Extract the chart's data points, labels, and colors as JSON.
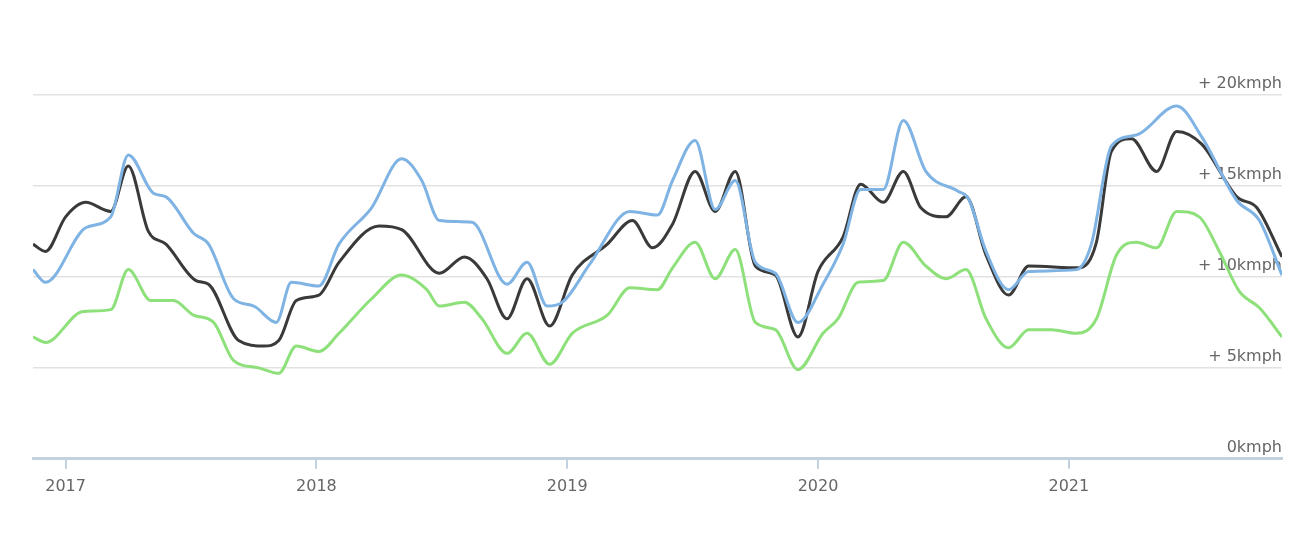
{
  "chart_data": {
    "type": "line",
    "xlim": [
      2016.87,
      2021.85
    ],
    "xticks": [
      2017,
      2018,
      2019,
      2020,
      2021
    ],
    "ylim": [
      0,
      20
    ],
    "yticks": [
      {
        "value": 0,
        "label": "0kmph"
      },
      {
        "value": 5,
        "label": "+ 5kmph"
      },
      {
        "value": 10,
        "label": "+ 10kmph"
      },
      {
        "value": 15,
        "label": "+ 15kmph"
      },
      {
        "value": 20,
        "label": "+ 20kmph"
      }
    ],
    "grid": "y",
    "legend": false,
    "marker": "none",
    "line_style": "solid",
    "series": [
      {
        "color": "#7eb3e4",
        "x": [
          2016.87,
          2016.92,
          2017.08,
          2017.18,
          2017.25,
          2017.35,
          2017.4,
          2017.51,
          2017.57,
          2017.67,
          2017.75,
          2017.84,
          2017.9,
          2018.01,
          2018.09,
          2018.22,
          2018.34,
          2018.42,
          2018.49,
          2018.62,
          2018.76,
          2018.84,
          2018.92,
          2018.98,
          2019.09,
          2019.25,
          2019.36,
          2019.42,
          2019.51,
          2019.59,
          2019.67,
          2019.75,
          2019.83,
          2019.92,
          2020.02,
          2020.1,
          2020.17,
          2020.26,
          2020.34,
          2020.43,
          2020.56,
          2020.6,
          2020.67,
          2020.76,
          2020.84,
          2021.03,
          2021.09,
          2021.17,
          2021.27,
          2021.43,
          2021.53,
          2021.67,
          2021.76,
          2021.85
        ],
        "values": [
          10.4,
          9.7,
          12.7,
          13.3,
          16.7,
          14.6,
          14.4,
          12.4,
          11.8,
          8.8,
          8.4,
          7.5,
          9.7,
          9.5,
          11.8,
          13.8,
          16.5,
          15.3,
          13.1,
          13.0,
          9.6,
          10.8,
          8.4,
          8.6,
          10.7,
          13.6,
          13.4,
          15.3,
          17.5,
          13.7,
          15.3,
          10.8,
          10.2,
          7.5,
          9.6,
          11.8,
          14.8,
          14.8,
          18.6,
          15.8,
          14.7,
          14.3,
          11.4,
          9.3,
          10.3,
          10.4,
          11.8,
          17.2,
          17.8,
          19.4,
          17.7,
          14.2,
          13.1,
          10.1
        ]
      },
      {
        "color": "#8ee07a",
        "x": [
          2016.87,
          2016.92,
          2017.07,
          2017.18,
          2017.25,
          2017.34,
          2017.43,
          2017.51,
          2017.59,
          2017.67,
          2017.77,
          2017.85,
          2017.92,
          2018.01,
          2018.09,
          2018.22,
          2018.34,
          2018.44,
          2018.49,
          2018.59,
          2018.66,
          2018.76,
          2018.84,
          2018.93,
          2019.02,
          2019.16,
          2019.25,
          2019.36,
          2019.42,
          2019.51,
          2019.59,
          2019.67,
          2019.75,
          2019.83,
          2019.92,
          2020.02,
          2020.08,
          2020.16,
          2020.26,
          2020.34,
          2020.43,
          2020.51,
          2020.59,
          2020.67,
          2020.76,
          2020.84,
          2020.93,
          2021.03,
          2021.11,
          2021.19,
          2021.27,
          2021.35,
          2021.43,
          2021.52,
          2021.6,
          2021.68,
          2021.76,
          2021.85
        ],
        "values": [
          6.7,
          6.4,
          8.1,
          8.2,
          10.4,
          8.7,
          8.7,
          7.9,
          7.5,
          5.4,
          5.0,
          4.7,
          6.2,
          5.9,
          6.9,
          8.8,
          10.1,
          9.3,
          8.4,
          8.6,
          7.7,
          5.8,
          6.9,
          5.2,
          6.9,
          7.9,
          9.4,
          9.3,
          10.5,
          11.9,
          9.9,
          11.5,
          7.5,
          7.1,
          4.9,
          6.9,
          7.7,
          9.7,
          9.8,
          11.9,
          10.6,
          9.9,
          10.4,
          7.7,
          6.1,
          7.1,
          7.1,
          6.9,
          7.7,
          11.2,
          11.9,
          11.6,
          13.6,
          13.3,
          11.4,
          9.2,
          8.3,
          6.7
        ]
      },
      {
        "color": "#3a3a3a",
        "x": [
          2016.87,
          2016.92,
          2017.0,
          2017.08,
          2017.18,
          2017.25,
          2017.33,
          2017.4,
          2017.52,
          2017.57,
          2017.69,
          2017.79,
          2017.85,
          2017.92,
          2018.01,
          2018.09,
          2018.25,
          2018.34,
          2018.49,
          2018.59,
          2018.68,
          2018.76,
          2018.84,
          2018.93,
          2019.02,
          2019.16,
          2019.26,
          2019.34,
          2019.42,
          2019.51,
          2019.59,
          2019.67,
          2019.75,
          2019.83,
          2019.92,
          2020.0,
          2020.1,
          2020.17,
          2020.26,
          2020.34,
          2020.41,
          2020.51,
          2020.59,
          2020.67,
          2020.76,
          2020.84,
          2021.04,
          2021.11,
          2021.17,
          2021.25,
          2021.35,
          2021.43,
          2021.53,
          2021.67,
          2021.75,
          2021.85
        ],
        "values": [
          11.8,
          11.4,
          13.3,
          14.1,
          13.6,
          16.1,
          12.5,
          11.8,
          9.8,
          9.6,
          6.5,
          6.2,
          6.5,
          8.7,
          9.0,
          10.8,
          12.8,
          12.6,
          10.2,
          11.1,
          9.9,
          7.7,
          9.9,
          7.3,
          10.1,
          11.8,
          13.1,
          11.6,
          12.9,
          15.8,
          13.6,
          15.8,
          10.6,
          10.1,
          6.7,
          10.3,
          12.2,
          15.1,
          14.1,
          15.8,
          13.8,
          13.3,
          14.4,
          11.2,
          9.0,
          10.6,
          10.5,
          11.9,
          16.9,
          17.6,
          15.8,
          18.0,
          17.3,
          14.4,
          13.8,
          11.1
        ]
      }
    ]
  }
}
